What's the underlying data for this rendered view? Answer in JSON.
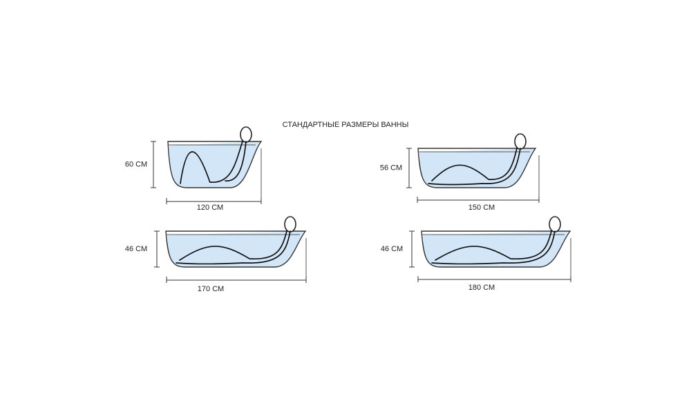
{
  "title": "СТАНДАРТНЫЕ РАЗМЕРЫ ВАННЫ",
  "tubs": [
    {
      "height": "60 СМ",
      "length": "120 СМ"
    },
    {
      "height": "56 СМ",
      "length": "150 СМ"
    },
    {
      "height": "46 СМ",
      "length": "170 СМ"
    },
    {
      "height": "46 СМ",
      "length": "180 СМ"
    }
  ]
}
